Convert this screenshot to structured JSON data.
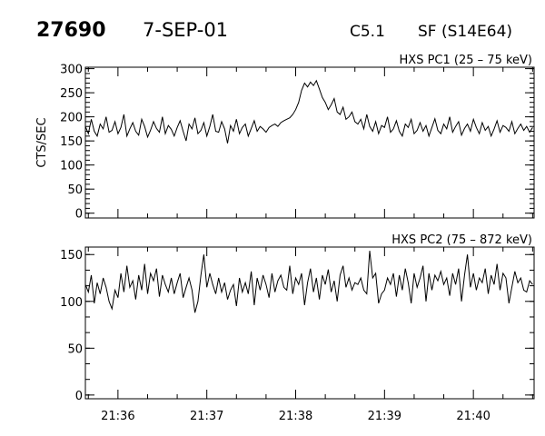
{
  "header": {
    "orbit": "27690",
    "date": "7-SEP-01",
    "goes_class": "C5.1",
    "location": "SF (S14E64)"
  },
  "chart_data": [
    {
      "type": "line",
      "title": "HXS PC1 (25 – 75 keV)",
      "ylabel": "CTS/SEC",
      "xlabel": "",
      "x_unit": "seconds after 21:35:00",
      "xlim": [
        38,
        341
      ],
      "ylim": [
        -10,
        303
      ],
      "yticks": [
        0,
        50,
        100,
        150,
        200,
        250,
        300
      ],
      "yminor": 10,
      "xticks": [
        {
          "t": 60,
          "label": "21:36"
        },
        {
          "t": 120,
          "label": "21:37"
        },
        {
          "t": 180,
          "label": "21:38"
        },
        {
          "t": 240,
          "label": "21:39"
        },
        {
          "t": 300,
          "label": "21:40"
        }
      ],
      "show_xtick_labels": false,
      "x_start": 38,
      "x_step": 2,
      "values": [
        180,
        165,
        195,
        170,
        160,
        185,
        175,
        200,
        168,
        172,
        190,
        165,
        178,
        205,
        160,
        175,
        188,
        170,
        162,
        195,
        180,
        158,
        172,
        190,
        176,
        168,
        200,
        165,
        182,
        174,
        160,
        178,
        192,
        170,
        150,
        185,
        175,
        198,
        165,
        172,
        188,
        160,
        180,
        205,
        170,
        168,
        190,
        175,
        145,
        182,
        170,
        195,
        165,
        178,
        185,
        160,
        176,
        192,
        170,
        180,
        175,
        168,
        178,
        182,
        185,
        180,
        188,
        192,
        195,
        198,
        205,
        215,
        230,
        255,
        270,
        262,
        272,
        265,
        275,
        258,
        240,
        230,
        215,
        225,
        238,
        210,
        205,
        220,
        195,
        200,
        210,
        190,
        185,
        195,
        175,
        205,
        180,
        170,
        190,
        165,
        182,
        178,
        200,
        168,
        175,
        192,
        170,
        160,
        185,
        178,
        195,
        165,
        172,
        188,
        170,
        182,
        160,
        178,
        196,
        172,
        165,
        185,
        175,
        200,
        168,
        180,
        190,
        162,
        176,
        185,
        170,
        195,
        178,
        165,
        188,
        172,
        180,
        160,
        175,
        192,
        168,
        182,
        178,
        170,
        190,
        165,
        176,
        185,
        172,
        180,
        168,
        178
      ]
    },
    {
      "type": "line",
      "title": "HXS PC2 (75 – 872 keV)",
      "ylabel": "",
      "xlabel": "",
      "x_unit": "seconds after 21:35:00",
      "xlim": [
        38,
        341
      ],
      "ylim": [
        -4,
        158
      ],
      "yticks": [
        0,
        50,
        100,
        150
      ],
      "yminor": 16.667,
      "xticks": [
        {
          "t": 60,
          "label": "21:36"
        },
        {
          "t": 120,
          "label": "21:37"
        },
        {
          "t": 180,
          "label": "21:38"
        },
        {
          "t": 240,
          "label": "21:39"
        },
        {
          "t": 300,
          "label": "21:40"
        }
      ],
      "show_xtick_labels": true,
      "x_start": 38,
      "x_step": 2,
      "values": [
        118,
        110,
        128,
        98,
        120,
        108,
        125,
        115,
        100,
        92,
        112,
        104,
        130,
        110,
        138,
        115,
        122,
        102,
        128,
        112,
        140,
        108,
        130,
        122,
        135,
        105,
        128,
        118,
        110,
        125,
        108,
        120,
        130,
        104,
        115,
        125,
        112,
        88,
        100,
        128,
        150,
        115,
        130,
        118,
        108,
        125,
        110,
        120,
        102,
        112,
        118,
        95,
        125,
        110,
        120,
        108,
        132,
        96,
        125,
        112,
        128,
        118,
        104,
        130,
        110,
        122,
        128,
        115,
        112,
        138,
        108,
        125,
        118,
        130,
        96,
        120,
        135,
        110,
        125,
        102,
        128,
        118,
        134,
        110,
        122,
        100,
        128,
        138,
        115,
        125,
        112,
        120,
        118,
        125,
        112,
        108,
        154,
        125,
        130,
        98,
        108,
        112,
        125,
        118,
        130,
        105,
        128,
        112,
        135,
        120,
        98,
        130,
        115,
        125,
        138,
        100,
        130,
        112,
        128,
        122,
        132,
        118,
        125,
        106,
        130,
        118,
        135,
        100,
        128,
        150,
        115,
        130,
        112,
        125,
        120,
        135,
        108,
        128,
        118,
        140,
        112,
        130,
        125,
        98,
        115,
        132,
        120,
        125,
        112,
        110,
        122,
        118
      ]
    }
  ]
}
